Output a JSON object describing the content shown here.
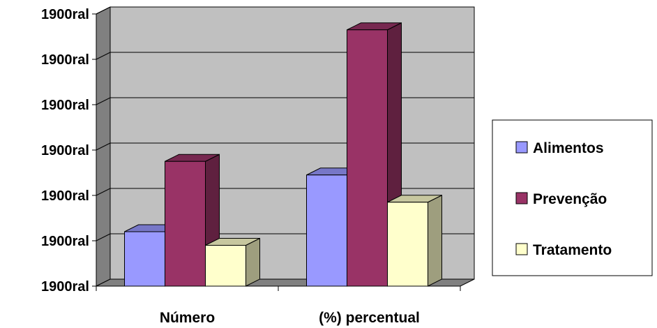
{
  "chart_data": {
    "type": "bar",
    "title": "",
    "xlabel": "",
    "ylabel": "",
    "categories": [
      "Número",
      "(%) percentual"
    ],
    "series": [
      {
        "name": "Alimentos",
        "values": [
          1.2,
          2.45
        ],
        "color": "#9999ff"
      },
      {
        "name": "Prevenção",
        "values": [
          2.75,
          5.65
        ],
        "color": "#993366"
      },
      {
        "name": "Tratamento",
        "values": [
          0.9,
          1.85
        ],
        "color": "#ffffcc"
      }
    ],
    "ylim": [
      0,
      6
    ],
    "yticks": [
      0,
      1,
      2,
      3,
      4,
      5,
      6
    ],
    "ytick_labels": [
      "1900ral",
      "1900ral",
      "1900ral",
      "1900ral",
      "1900ral",
      "1900ral",
      "1900ral"
    ],
    "grid": true,
    "legend_position": "right",
    "style": "3d-clustered-column",
    "wall_color": "#c0c0c0",
    "floor_color": "#808080"
  }
}
